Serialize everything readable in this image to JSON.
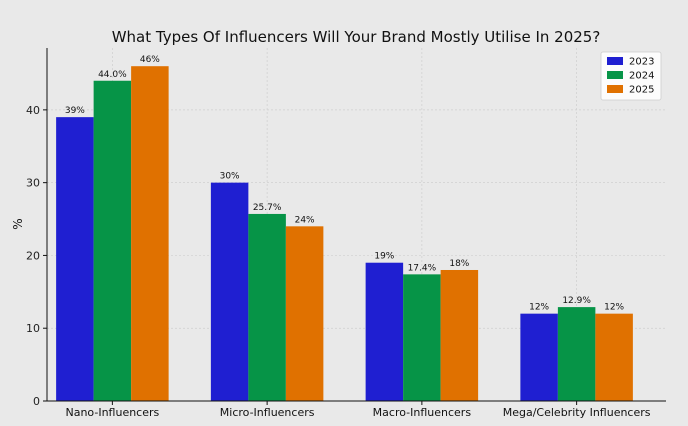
{
  "chart_data": {
    "type": "bar",
    "title": "What Types Of Influencers Will Your Brand Mostly Utilise In 2025?",
    "xlabel": "",
    "ylabel": "%",
    "ylim": [
      0,
      48.5
    ],
    "yticks": [
      0,
      10,
      20,
      30,
      40
    ],
    "grid": true,
    "legend_position": "top-right",
    "categories": [
      "Nano-Influencers",
      "Micro-Influencers",
      "Macro-Influencers",
      "Mega/Celebrity Influencers"
    ],
    "series": [
      {
        "name": "2023",
        "color": "#1f1fd1",
        "values": [
          39,
          30,
          19,
          12
        ],
        "labels": [
          "39%",
          "30%",
          "19%",
          "12%"
        ]
      },
      {
        "name": "2024",
        "color": "#069447",
        "values": [
          44.0,
          25.7,
          17.4,
          12.9
        ],
        "labels": [
          "44.0%",
          "25.7%",
          "17.4%",
          "12.9%"
        ]
      },
      {
        "name": "2025",
        "color": "#e07100",
        "values": [
          46,
          24,
          18,
          12
        ],
        "labels": [
          "46%",
          "24%",
          "18%",
          "12%"
        ]
      }
    ]
  }
}
